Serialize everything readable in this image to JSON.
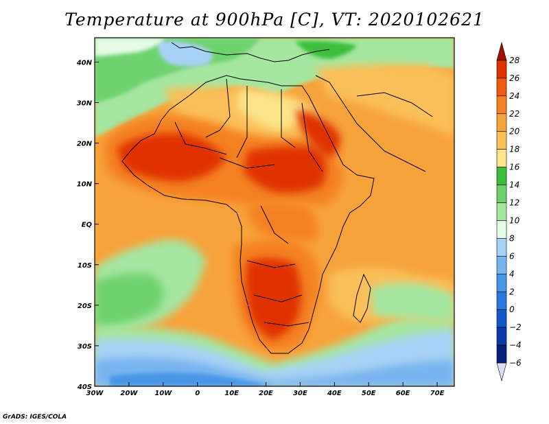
{
  "title": "Temperature at 900hPa [C], VT: 2020102621",
  "credit": "GrADS: IGES/COLA",
  "map": {
    "lon_range": [
      -30,
      75
    ],
    "lat_range": [
      -40,
      46
    ],
    "lon_ticks": [
      {
        "value": -30,
        "label": "30W"
      },
      {
        "value": -20,
        "label": "20W"
      },
      {
        "value": -10,
        "label": "10W"
      },
      {
        "value": 0,
        "label": "0"
      },
      {
        "value": 10,
        "label": "10E"
      },
      {
        "value": 20,
        "label": "20E"
      },
      {
        "value": 30,
        "label": "30E"
      },
      {
        "value": 40,
        "label": "40E"
      },
      {
        "value": 50,
        "label": "50E"
      },
      {
        "value": 60,
        "label": "60E"
      },
      {
        "value": 70,
        "label": "70E"
      }
    ],
    "lat_ticks": [
      {
        "value": 40,
        "label": "40N"
      },
      {
        "value": 30,
        "label": "30N"
      },
      {
        "value": 20,
        "label": "20N"
      },
      {
        "value": 10,
        "label": "10N"
      },
      {
        "value": 0,
        "label": "EQ"
      },
      {
        "value": -10,
        "label": "10S"
      },
      {
        "value": -20,
        "label": "20S"
      },
      {
        "value": -30,
        "label": "30S"
      },
      {
        "value": -40,
        "label": "40S"
      }
    ]
  },
  "colorbar": {
    "levels": [
      "28",
      "26",
      "24",
      "22",
      "20",
      "18",
      "16",
      "14",
      "12",
      "10",
      "8",
      "6",
      "4",
      "2",
      "0",
      "−2",
      "−4",
      "−6"
    ],
    "colors": [
      "#a01200",
      "#e03200",
      "#f05a10",
      "#f58220",
      "#f7a33c",
      "#fbc05a",
      "#fde48a",
      "#3cbe3c",
      "#6ed26e",
      "#a5e6a0",
      "#e6fae6",
      "#a8d2f5",
      "#78b4f0",
      "#4a96e6",
      "#2a78dc",
      "#1458c8",
      "#0a3aa8",
      "#06207a",
      "#dcdcf5"
    ]
  },
  "fields": {
    "colors": {
      "ocean_cold": "#4a96e6",
      "ocean_cool": "#a8d2f5",
      "sea_green": "#6ed26e",
      "north_cool": "#a5e6a0",
      "mid_orange": "#f7a33c",
      "warm": "#f58220",
      "hot": "#e03200",
      "very_hot": "#c82000",
      "light_yellow": "#fde48a",
      "border": "#000000"
    }
  }
}
